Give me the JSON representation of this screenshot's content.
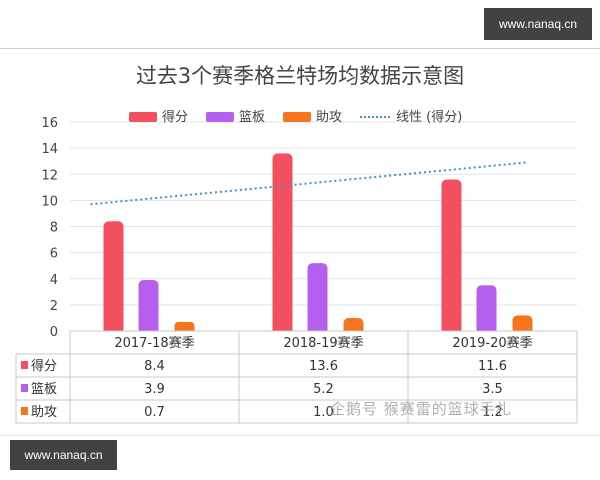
{
  "watermark_top": "www.nanaq.cn",
  "watermark_bottom": "www.nanaq.cn",
  "stamp_text": "企鹅号 猴赛雷的篮球手札",
  "colors": {
    "points": "#f2505e",
    "rebounds": "#b55ef0",
    "assists": "#f5741e",
    "trend": "#4a8fc2"
  },
  "chart_data": {
    "type": "bar",
    "title": "过去3个赛季格兰特场均数据示意图",
    "categories": [
      "2017-18赛季",
      "2018-19赛季",
      "2019-20赛季"
    ],
    "series": [
      {
        "name": "得分",
        "values": [
          8.4,
          13.6,
          11.6
        ]
      },
      {
        "name": "篮板",
        "values": [
          3.9,
          5.2,
          3.5
        ]
      },
      {
        "name": "助攻",
        "values": [
          0.7,
          1.0,
          1.2
        ]
      }
    ],
    "trendline": {
      "name": "线性 (得分)",
      "start": 9.7,
      "end": 12.9
    },
    "table_values": [
      [
        "8.4",
        "13.6",
        "11.6"
      ],
      [
        "3.9",
        "5.2",
        "3.5"
      ],
      [
        "0.7",
        "1.0",
        "1.2"
      ]
    ],
    "ylim": [
      0,
      16
    ],
    "yticks": [
      0,
      2,
      4,
      6,
      8,
      10,
      12,
      14,
      16
    ],
    "legend_position": "top",
    "grid": true
  }
}
